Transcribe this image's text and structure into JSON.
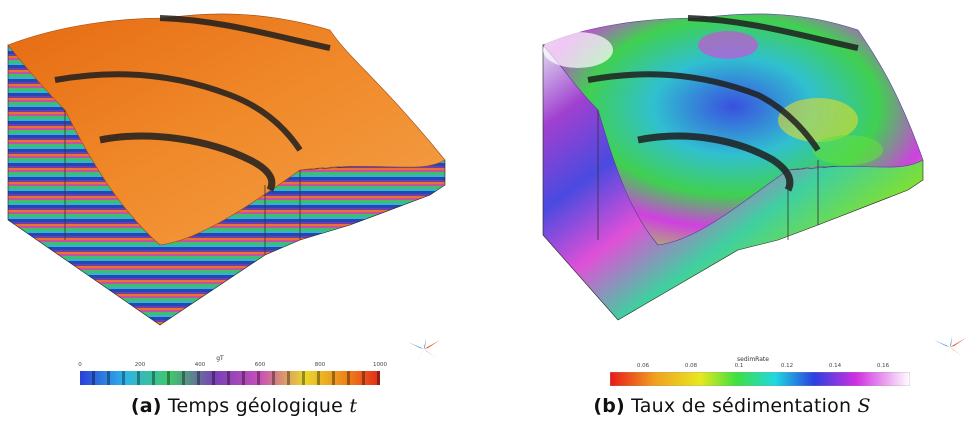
{
  "panels": [
    {
      "label": "(a)",
      "caption_text": "Temps géologique",
      "caption_symbol": "t",
      "colorbar": {
        "title": "gT",
        "ticks": [
          "0",
          "200",
          "400",
          "600",
          "800",
          "1000"
        ]
      }
    },
    {
      "label": "(b)",
      "caption_text": "Taux de sédimentation",
      "caption_symbol": "S",
      "colorbar": {
        "title": "sedimRate",
        "ticks": [
          "0.06",
          "0.08",
          "0.1",
          "0.12",
          "0.14",
          "0.16"
        ]
      }
    }
  ],
  "colors": {
    "panel_a_surface": "#f07a1a",
    "fault_band": "#1e1e1e"
  },
  "icons": [
    "compass-rose-icon",
    "compass-rose-icon"
  ]
}
